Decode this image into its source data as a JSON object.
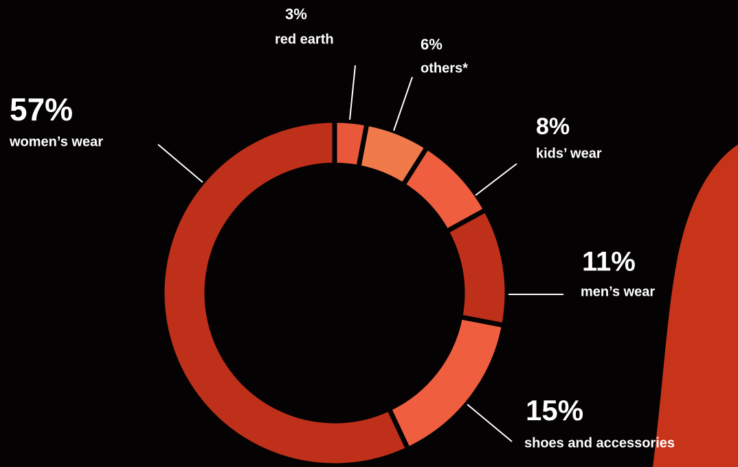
{
  "chart_data": {
    "type": "donut",
    "categories": [
      "red earth",
      "others*",
      "kids’ wear",
      "men’s wear",
      "shoes and accessories",
      "women’s wear"
    ],
    "values": [
      3,
      6,
      8,
      11,
      15,
      57
    ],
    "value_labels": [
      "3%",
      "6%",
      "8%",
      "11%",
      "15%",
      "57%"
    ],
    "colors": [
      "#e9583b",
      "#f07a4a",
      "#ee5e3f",
      "#bf301a",
      "#ee5e3f",
      "#bf301a"
    ]
  }
}
